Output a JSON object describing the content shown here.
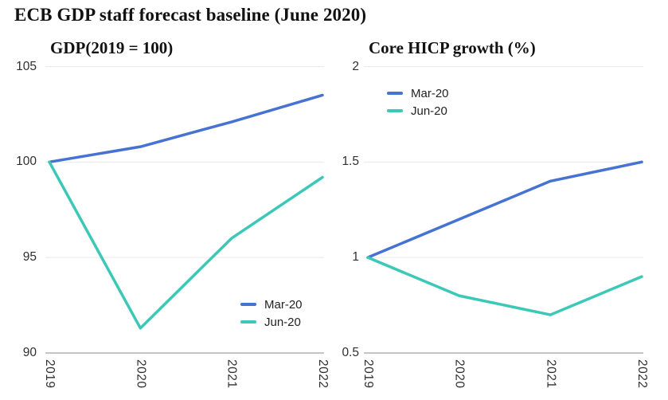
{
  "page_title": "ECB GDP staff forecast baseline (June 2020)",
  "colors": {
    "mar_20": "#4673D2",
    "jun_20": "#3CC8B6",
    "gridline": "#E9E9E9",
    "axis_line": "#B0B0B0",
    "title_text": "#121212",
    "tick_text": "#2F2F2F"
  },
  "chart_data": [
    {
      "type": "line",
      "title": "GDP(2019 = 100)",
      "x": [
        "2019",
        "2020",
        "2021",
        "2022"
      ],
      "series": [
        {
          "name": "Mar-20",
          "color": "mar_20",
          "values": [
            100,
            100.8,
            102.1,
            103.5
          ]
        },
        {
          "name": "Jun-20",
          "color": "jun_20",
          "values": [
            100,
            91.3,
            96,
            99.2
          ]
        }
      ],
      "ylim": [
        90,
        105
      ],
      "yticks": [
        105,
        100,
        95,
        90
      ],
      "grid": true,
      "legend_position": "bottom-right",
      "xtick_rotation": 90
    },
    {
      "type": "line",
      "title": "Core HICP growth (%)",
      "x": [
        "2019",
        "2020",
        "2021",
        "2022"
      ],
      "series": [
        {
          "name": "Mar-20",
          "color": "mar_20",
          "values": [
            1,
            1.2,
            1.4,
            1.5
          ]
        },
        {
          "name": "Jun-20",
          "color": "jun_20",
          "values": [
            1,
            0.8,
            0.7,
            0.9
          ]
        }
      ],
      "ylim": [
        0.5,
        2
      ],
      "yticks": [
        2,
        1.5,
        1,
        0.5
      ],
      "grid": true,
      "legend_position": "top-left",
      "xtick_rotation": 90
    }
  ]
}
